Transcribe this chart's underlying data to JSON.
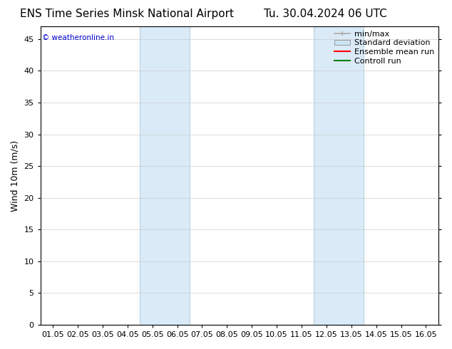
{
  "title": "ENS Time Series Minsk National Airport",
  "title2": "Tu. 30.04.2024 06 UTC",
  "ylabel": "Wind 10m (m/s)",
  "background_color": "#ffffff",
  "plot_bg_color": "#ffffff",
  "y_min": 0,
  "y_max": 47,
  "y_ticks": [
    0,
    5,
    10,
    15,
    20,
    25,
    30,
    35,
    40,
    45
  ],
  "x_tick_labels": [
    "01.05",
    "02.05",
    "03.05",
    "04.05",
    "05.05",
    "06.05",
    "07.05",
    "08.05",
    "09.05",
    "10.05",
    "11.05",
    "12.05",
    "13.05",
    "14.05",
    "15.05",
    "16.05"
  ],
  "x_tick_positions": [
    0,
    1,
    2,
    3,
    4,
    5,
    6,
    7,
    8,
    9,
    10,
    11,
    12,
    13,
    14,
    15
  ],
  "shaded_regions": [
    {
      "x_start": 3,
      "x_end": 5,
      "color": "#daeaf7"
    },
    {
      "x_start": 10,
      "x_end": 12,
      "color": "#daeaf7"
    }
  ],
  "shaded_borders": [
    3,
    5,
    10,
    12
  ],
  "watermark_text": "© weatheronline.in",
  "watermark_color": "#0000cc",
  "legend_items": [
    {
      "label": "min/max",
      "color": "#aaaaaa",
      "type": "errorbar"
    },
    {
      "label": "Standard deviation",
      "color": "#cce5f5",
      "type": "box"
    },
    {
      "label": "Ensemble mean run",
      "color": "#ff0000",
      "type": "line"
    },
    {
      "label": "Controll run",
      "color": "#008000",
      "type": "line"
    }
  ],
  "title_fontsize": 11,
  "tick_fontsize": 8,
  "ylabel_fontsize": 9,
  "legend_fontsize": 8,
  "grid_color": "#cccccc",
  "border_color": "#000000",
  "x_min": -0.5,
  "x_max": 15.5
}
